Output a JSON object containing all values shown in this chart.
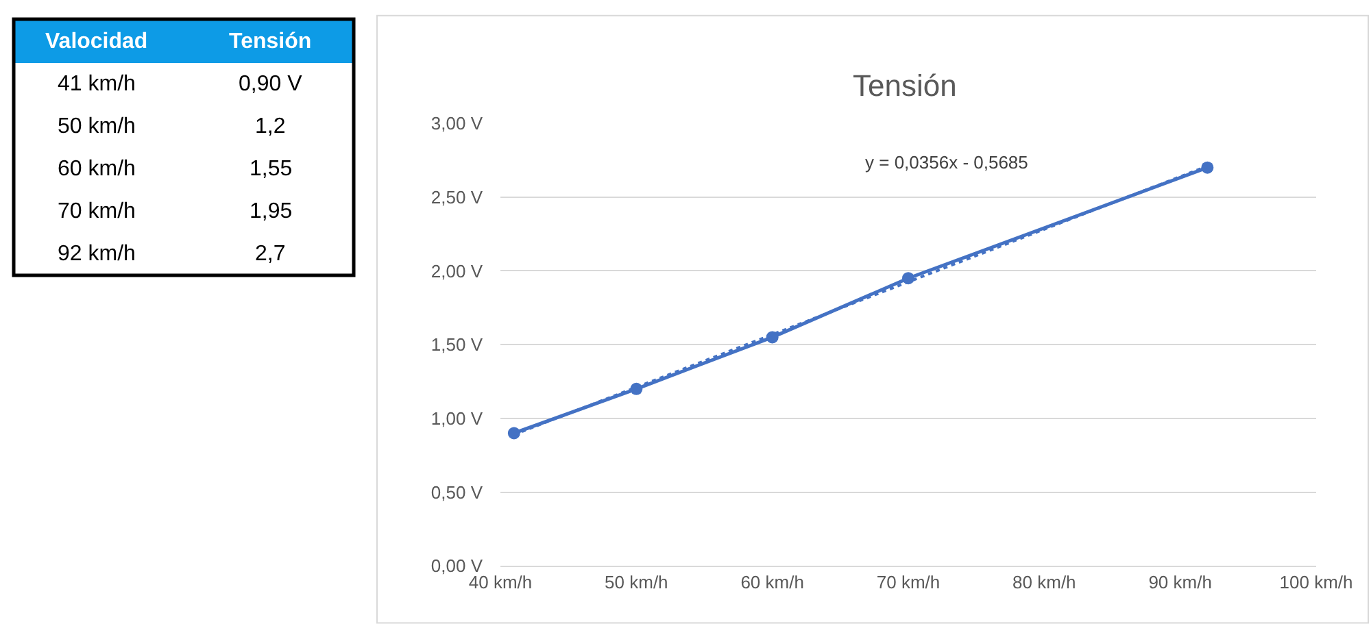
{
  "chart_data": {
    "type": "line",
    "title": "Tensión",
    "x": [
      41,
      50,
      60,
      70,
      92
    ],
    "series": [
      {
        "color": "#4472c4",
        "values": [
          0.9,
          1.2,
          1.55,
          1.95,
          2.7
        ],
        "marker": "circle",
        "line_style": "solid"
      },
      {
        "type": "line",
        "color": "#4472c4",
        "x": [
          41,
          92
        ],
        "values": [
          0.89,
          2.71
        ],
        "marker": "none",
        "line_style": "dotted"
      }
    ],
    "annotations": [
      "y = 0,0356x - 0,5685",
      "Valocidad",
      "Tensión",
      "41 km/h",
      "0,90 V",
      "50 km/h",
      "1,2",
      "60 km/h",
      "1,55",
      "70 km/h",
      "1,95",
      "92 km/h",
      "2,7"
    ],
    "xlim": [
      40,
      100
    ],
    "xticks": [
      {
        "value": 40,
        "label": "40 km/h"
      },
      {
        "value": 50,
        "label": "50 km/h"
      },
      {
        "value": 60,
        "label": "60 km/h"
      },
      {
        "value": 70,
        "label": "70 km/h"
      },
      {
        "value": 80,
        "label": "80 km/h"
      },
      {
        "value": 90,
        "label": "90 km/h"
      },
      {
        "value": 100,
        "label": "100 km/h"
      }
    ],
    "ylim": [
      0,
      3
    ],
    "yticks": [
      {
        "value": 0,
        "label": "0,00 V"
      },
      {
        "value": 0.5,
        "label": "0,50 V"
      },
      {
        "value": 1,
        "label": "1,00 V"
      },
      {
        "value": 1.5,
        "label": "1,50 V"
      },
      {
        "value": 2,
        "label": "2,00 V"
      },
      {
        "value": 2.5,
        "label": "2,50 V"
      },
      {
        "value": 3,
        "label": "3,00 V"
      }
    ],
    "grid": "y"
  }
}
